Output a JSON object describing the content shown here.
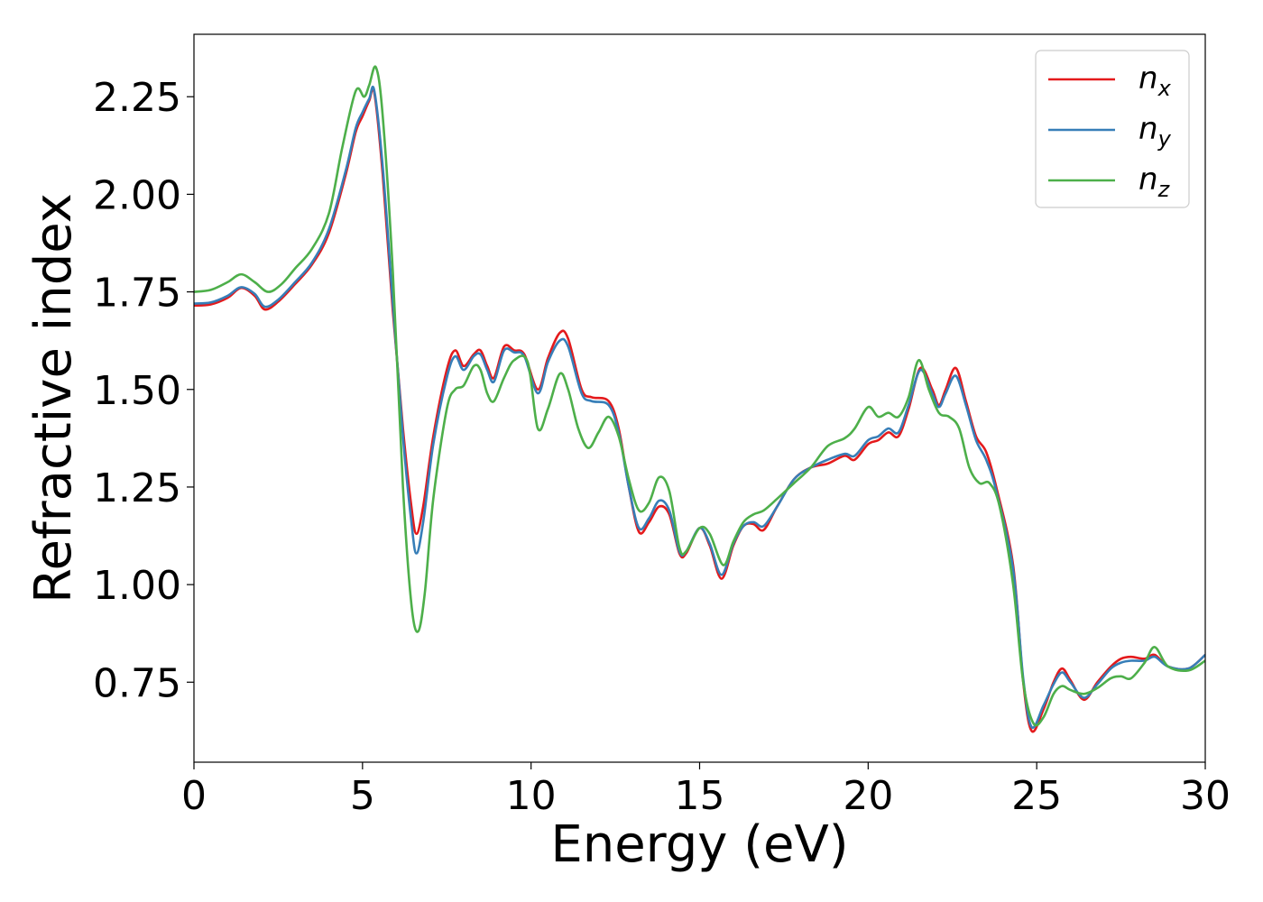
{
  "chart_data": {
    "type": "line",
    "xlabel": "Energy (eV)",
    "ylabel": "Refractive index",
    "xlim": [
      0,
      30
    ],
    "ylim": [
      0.545,
      2.41
    ],
    "xticks": [
      0,
      5,
      10,
      15,
      20,
      25,
      30
    ],
    "xtick_labels": [
      "0",
      "5",
      "10",
      "15",
      "20",
      "25",
      "30"
    ],
    "yticks": [
      0.75,
      1.0,
      1.25,
      1.5,
      1.75,
      2.0,
      2.25
    ],
    "ytick_labels": [
      "0.75",
      "1.00",
      "1.25",
      "1.50",
      "1.75",
      "2.00",
      "2.25"
    ],
    "grid": false,
    "legend_position": "top-right",
    "series": [
      {
        "name": "n",
        "subscript": "x",
        "color": "#e41a1c",
        "points": [
          [
            0,
            1.715
          ],
          [
            0.5,
            1.718
          ],
          [
            1.0,
            1.735
          ],
          [
            1.4,
            1.76
          ],
          [
            1.8,
            1.74
          ],
          [
            2.1,
            1.705
          ],
          [
            2.5,
            1.725
          ],
          [
            3.0,
            1.77
          ],
          [
            3.5,
            1.82
          ],
          [
            4.0,
            1.9
          ],
          [
            4.5,
            2.05
          ],
          [
            4.8,
            2.16
          ],
          [
            5.0,
            2.2
          ],
          [
            5.2,
            2.24
          ],
          [
            5.35,
            2.26
          ],
          [
            5.6,
            2.05
          ],
          [
            5.9,
            1.7
          ],
          [
            6.2,
            1.4
          ],
          [
            6.45,
            1.2
          ],
          [
            6.6,
            1.13
          ],
          [
            6.8,
            1.2
          ],
          [
            7.1,
            1.38
          ],
          [
            7.5,
            1.55
          ],
          [
            7.75,
            1.6
          ],
          [
            8.0,
            1.56
          ],
          [
            8.3,
            1.59
          ],
          [
            8.5,
            1.6
          ],
          [
            8.7,
            1.56
          ],
          [
            8.9,
            1.53
          ],
          [
            9.2,
            1.61
          ],
          [
            9.5,
            1.6
          ],
          [
            9.8,
            1.59
          ],
          [
            10.2,
            1.5
          ],
          [
            10.5,
            1.58
          ],
          [
            10.85,
            1.645
          ],
          [
            11.1,
            1.63
          ],
          [
            11.5,
            1.5
          ],
          [
            11.8,
            1.48
          ],
          [
            12.3,
            1.47
          ],
          [
            12.6,
            1.4
          ],
          [
            12.9,
            1.25
          ],
          [
            13.2,
            1.135
          ],
          [
            13.5,
            1.16
          ],
          [
            13.8,
            1.2
          ],
          [
            14.1,
            1.18
          ],
          [
            14.4,
            1.08
          ],
          [
            14.6,
            1.08
          ],
          [
            15.0,
            1.145
          ],
          [
            15.3,
            1.1
          ],
          [
            15.65,
            1.015
          ],
          [
            16.0,
            1.1
          ],
          [
            16.3,
            1.15
          ],
          [
            16.6,
            1.155
          ],
          [
            16.9,
            1.14
          ],
          [
            17.3,
            1.2
          ],
          [
            17.8,
            1.27
          ],
          [
            18.3,
            1.3
          ],
          [
            18.8,
            1.31
          ],
          [
            19.3,
            1.33
          ],
          [
            19.6,
            1.32
          ],
          [
            20.0,
            1.36
          ],
          [
            20.3,
            1.37
          ],
          [
            20.6,
            1.39
          ],
          [
            20.9,
            1.38
          ],
          [
            21.2,
            1.45
          ],
          [
            21.55,
            1.555
          ],
          [
            21.9,
            1.5
          ],
          [
            22.1,
            1.46
          ],
          [
            22.3,
            1.5
          ],
          [
            22.6,
            1.555
          ],
          [
            22.9,
            1.47
          ],
          [
            23.2,
            1.38
          ],
          [
            23.5,
            1.34
          ],
          [
            23.8,
            1.25
          ],
          [
            24.3,
            1.05
          ],
          [
            24.6,
            0.75
          ],
          [
            24.85,
            0.625
          ],
          [
            25.2,
            0.68
          ],
          [
            25.5,
            0.75
          ],
          [
            25.75,
            0.785
          ],
          [
            26.0,
            0.755
          ],
          [
            26.4,
            0.705
          ],
          [
            26.8,
            0.75
          ],
          [
            27.2,
            0.79
          ],
          [
            27.5,
            0.81
          ],
          [
            27.8,
            0.815
          ],
          [
            28.2,
            0.81
          ],
          [
            28.5,
            0.82
          ],
          [
            28.9,
            0.79
          ],
          [
            29.5,
            0.785
          ],
          [
            30,
            0.82
          ]
        ]
      },
      {
        "name": "n",
        "subscript": "y",
        "color": "#377eb8",
        "points": [
          [
            0,
            1.72
          ],
          [
            0.5,
            1.723
          ],
          [
            1.0,
            1.74
          ],
          [
            1.4,
            1.762
          ],
          [
            1.8,
            1.745
          ],
          [
            2.1,
            1.712
          ],
          [
            2.5,
            1.73
          ],
          [
            3.0,
            1.775
          ],
          [
            3.5,
            1.825
          ],
          [
            4.0,
            1.91
          ],
          [
            4.5,
            2.06
          ],
          [
            4.8,
            2.17
          ],
          [
            5.0,
            2.21
          ],
          [
            5.2,
            2.245
          ],
          [
            5.35,
            2.265
          ],
          [
            5.6,
            2.07
          ],
          [
            5.9,
            1.72
          ],
          [
            6.2,
            1.38
          ],
          [
            6.45,
            1.16
          ],
          [
            6.6,
            1.08
          ],
          [
            6.8,
            1.16
          ],
          [
            7.1,
            1.36
          ],
          [
            7.5,
            1.53
          ],
          [
            7.75,
            1.585
          ],
          [
            8.0,
            1.55
          ],
          [
            8.3,
            1.585
          ],
          [
            8.5,
            1.59
          ],
          [
            8.7,
            1.55
          ],
          [
            8.9,
            1.52
          ],
          [
            9.2,
            1.6
          ],
          [
            9.5,
            1.595
          ],
          [
            9.8,
            1.585
          ],
          [
            10.2,
            1.49
          ],
          [
            10.5,
            1.57
          ],
          [
            10.85,
            1.625
          ],
          [
            11.1,
            1.61
          ],
          [
            11.5,
            1.49
          ],
          [
            11.8,
            1.47
          ],
          [
            12.3,
            1.46
          ],
          [
            12.6,
            1.39
          ],
          [
            12.9,
            1.25
          ],
          [
            13.2,
            1.145
          ],
          [
            13.5,
            1.17
          ],
          [
            13.8,
            1.215
          ],
          [
            14.1,
            1.19
          ],
          [
            14.4,
            1.085
          ],
          [
            14.6,
            1.085
          ],
          [
            15.0,
            1.145
          ],
          [
            15.3,
            1.105
          ],
          [
            15.65,
            1.025
          ],
          [
            16.0,
            1.105
          ],
          [
            16.3,
            1.15
          ],
          [
            16.6,
            1.16
          ],
          [
            16.9,
            1.15
          ],
          [
            17.3,
            1.2
          ],
          [
            17.8,
            1.27
          ],
          [
            18.3,
            1.3
          ],
          [
            18.8,
            1.32
          ],
          [
            19.3,
            1.335
          ],
          [
            19.6,
            1.33
          ],
          [
            20.0,
            1.37
          ],
          [
            20.3,
            1.38
          ],
          [
            20.6,
            1.4
          ],
          [
            20.9,
            1.39
          ],
          [
            21.2,
            1.46
          ],
          [
            21.55,
            1.55
          ],
          [
            21.9,
            1.49
          ],
          [
            22.1,
            1.455
          ],
          [
            22.3,
            1.49
          ],
          [
            22.6,
            1.535
          ],
          [
            22.9,
            1.46
          ],
          [
            23.2,
            1.37
          ],
          [
            23.5,
            1.32
          ],
          [
            23.8,
            1.24
          ],
          [
            24.3,
            1.04
          ],
          [
            24.6,
            0.76
          ],
          [
            24.85,
            0.635
          ],
          [
            25.2,
            0.69
          ],
          [
            25.5,
            0.745
          ],
          [
            25.75,
            0.775
          ],
          [
            26.0,
            0.75
          ],
          [
            26.4,
            0.71
          ],
          [
            26.8,
            0.745
          ],
          [
            27.2,
            0.785
          ],
          [
            27.5,
            0.8
          ],
          [
            27.8,
            0.805
          ],
          [
            28.2,
            0.805
          ],
          [
            28.5,
            0.815
          ],
          [
            28.9,
            0.79
          ],
          [
            29.5,
            0.785
          ],
          [
            30,
            0.82
          ]
        ]
      },
      {
        "name": "n",
        "subscript": "z",
        "color": "#4daf4a",
        "points": [
          [
            0,
            1.75
          ],
          [
            0.5,
            1.755
          ],
          [
            1.0,
            1.775
          ],
          [
            1.4,
            1.795
          ],
          [
            1.8,
            1.775
          ],
          [
            2.2,
            1.75
          ],
          [
            2.6,
            1.77
          ],
          [
            3.0,
            1.81
          ],
          [
            3.5,
            1.86
          ],
          [
            4.0,
            1.95
          ],
          [
            4.4,
            2.12
          ],
          [
            4.8,
            2.265
          ],
          [
            5.05,
            2.25
          ],
          [
            5.2,
            2.28
          ],
          [
            5.4,
            2.325
          ],
          [
            5.6,
            2.2
          ],
          [
            5.9,
            1.8
          ],
          [
            6.2,
            1.25
          ],
          [
            6.45,
            0.95
          ],
          [
            6.65,
            0.88
          ],
          [
            6.85,
            0.98
          ],
          [
            7.1,
            1.22
          ],
          [
            7.5,
            1.45
          ],
          [
            7.75,
            1.5
          ],
          [
            8.0,
            1.51
          ],
          [
            8.3,
            1.56
          ],
          [
            8.5,
            1.55
          ],
          [
            8.7,
            1.49
          ],
          [
            8.9,
            1.47
          ],
          [
            9.2,
            1.53
          ],
          [
            9.5,
            1.575
          ],
          [
            9.9,
            1.57
          ],
          [
            10.2,
            1.4
          ],
          [
            10.5,
            1.45
          ],
          [
            10.85,
            1.54
          ],
          [
            11.1,
            1.5
          ],
          [
            11.4,
            1.4
          ],
          [
            11.7,
            1.35
          ],
          [
            12.0,
            1.39
          ],
          [
            12.3,
            1.43
          ],
          [
            12.6,
            1.38
          ],
          [
            12.9,
            1.27
          ],
          [
            13.2,
            1.19
          ],
          [
            13.5,
            1.21
          ],
          [
            13.8,
            1.275
          ],
          [
            14.1,
            1.24
          ],
          [
            14.4,
            1.095
          ],
          [
            14.6,
            1.085
          ],
          [
            15.0,
            1.145
          ],
          [
            15.3,
            1.13
          ],
          [
            15.7,
            1.05
          ],
          [
            16.0,
            1.11
          ],
          [
            16.3,
            1.16
          ],
          [
            16.6,
            1.18
          ],
          [
            16.9,
            1.19
          ],
          [
            17.3,
            1.22
          ],
          [
            17.8,
            1.26
          ],
          [
            18.3,
            1.3
          ],
          [
            18.8,
            1.355
          ],
          [
            19.3,
            1.375
          ],
          [
            19.6,
            1.4
          ],
          [
            20.0,
            1.455
          ],
          [
            20.3,
            1.43
          ],
          [
            20.6,
            1.44
          ],
          [
            20.9,
            1.43
          ],
          [
            21.2,
            1.48
          ],
          [
            21.5,
            1.575
          ],
          [
            21.8,
            1.5
          ],
          [
            22.1,
            1.44
          ],
          [
            22.4,
            1.43
          ],
          [
            22.7,
            1.4
          ],
          [
            23.0,
            1.3
          ],
          [
            23.3,
            1.26
          ],
          [
            23.6,
            1.26
          ],
          [
            23.9,
            1.2
          ],
          [
            24.3,
            1.0
          ],
          [
            24.6,
            0.75
          ],
          [
            24.9,
            0.645
          ],
          [
            25.2,
            0.66
          ],
          [
            25.5,
            0.72
          ],
          [
            25.75,
            0.74
          ],
          [
            26.0,
            0.73
          ],
          [
            26.4,
            0.72
          ],
          [
            26.8,
            0.735
          ],
          [
            27.2,
            0.76
          ],
          [
            27.5,
            0.765
          ],
          [
            27.8,
            0.76
          ],
          [
            28.2,
            0.8
          ],
          [
            28.5,
            0.84
          ],
          [
            28.9,
            0.79
          ],
          [
            29.5,
            0.78
          ],
          [
            30,
            0.805
          ]
        ]
      }
    ]
  }
}
